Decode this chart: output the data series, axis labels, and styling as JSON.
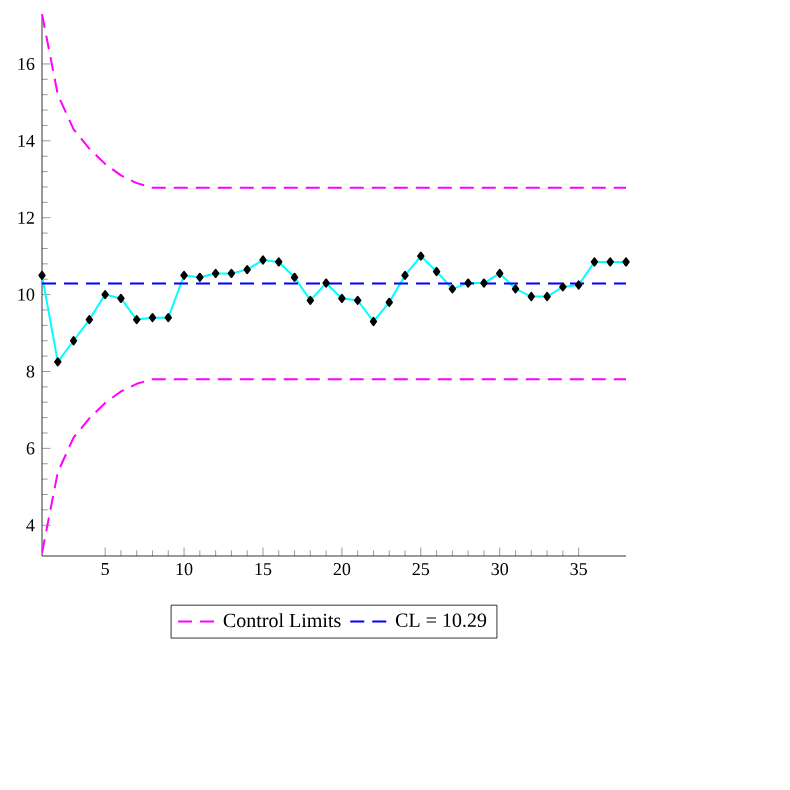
{
  "chart_data": {
    "type": "line",
    "x": [
      1,
      2,
      3,
      4,
      5,
      6,
      7,
      8,
      9,
      10,
      11,
      12,
      13,
      14,
      15,
      16,
      17,
      18,
      19,
      20,
      21,
      22,
      23,
      24,
      25,
      26,
      27,
      28,
      29,
      30,
      31,
      32,
      33,
      34,
      35,
      36,
      37,
      38
    ],
    "series": [
      {
        "values": [
          10.5,
          8.25,
          8.8,
          9.35,
          10.0,
          9.9,
          9.35,
          9.4,
          9.4,
          10.5,
          10.45,
          10.55,
          10.55,
          10.65,
          10.9,
          10.85,
          10.45,
          9.85,
          10.3,
          9.9,
          9.85,
          9.3,
          9.8,
          10.5,
          11.0,
          10.6,
          10.15,
          10.3,
          10.3,
          10.55,
          10.15,
          9.95,
          9.95,
          10.2,
          10.25,
          10.85,
          10.85,
          10.85
        ],
        "color": "#00ffff",
        "marker": "diamond",
        "line_style": "solid"
      },
      {
        "name": "Control Limits",
        "x": [
          1,
          2,
          3,
          4,
          5,
          6,
          7,
          8,
          38
        ],
        "values": [
          17.3,
          15.2,
          14.3,
          13.8,
          13.4,
          13.1,
          12.9,
          12.78,
          12.78
        ],
        "color": "#ff00ff",
        "marker": "none",
        "line_style": "dashed"
      },
      {
        "x": [
          1,
          2,
          3,
          4,
          5,
          6,
          7,
          8,
          38
        ],
        "values": [
          3.28,
          5.38,
          6.28,
          6.78,
          7.18,
          7.48,
          7.68,
          7.8,
          7.8
        ],
        "color": "#ff00ff",
        "marker": "none",
        "line_style": "dashed"
      }
    ],
    "ref_lines": [
      {
        "axis": "y",
        "value": 10.29,
        "label": "CL = 10.29",
        "color": "#0000ff",
        "line_style": "dashed"
      }
    ],
    "xlim": [
      1,
      38
    ],
    "ylim": [
      3.2,
      17.3
    ],
    "xticks": [
      5,
      10,
      15,
      20,
      25,
      30,
      35
    ],
    "yticks": [
      4,
      6,
      8,
      10,
      12,
      14,
      16
    ],
    "grid": false,
    "legend": "bottom"
  }
}
